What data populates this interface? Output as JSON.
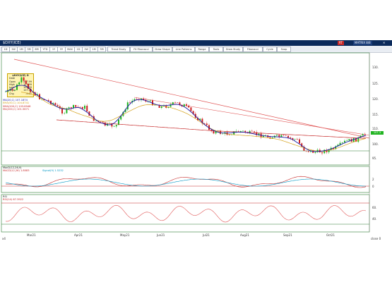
{
  "window": {
    "title": "$DXY(ICE)",
    "right_labels": [
      "RT",
      "MATRIX 8/8"
    ]
  },
  "toolbar": {
    "left_buttons": [
      "1D",
      "1W",
      "1M",
      "3M",
      "6M",
      "YTD",
      "1Y",
      "5Y",
      "MAX",
      "1D",
      "1W",
      "1M",
      "3M"
    ],
    "dropdowns": [
      "Trend Study",
      "Fit Fibonacci",
      "Draw Shape",
      "Line Patterns",
      "Range",
      "Tools",
      "Draw Study",
      "Fibonacci"
    ],
    "right_buttons": [
      "Cycle",
      "Snap"
    ]
  },
  "databox": {
    "header": "$DXY(ICE) D",
    "rows": [
      {
        "label": "Date",
        "value": ""
      },
      {
        "label": "Open",
        "value": "107.99"
      },
      {
        "label": "High",
        "value": "107.99"
      },
      {
        "label": "Low",
        "value": "106.99"
      },
      {
        "label": "Close",
        "value": "107.08"
      },
      {
        "label": "Chg",
        "value": "-0.91"
      },
      {
        "label": "%Chg",
        "value": "-0.84%"
      }
    ]
  },
  "price_pane": {
    "legends": [
      {
        "text": "MA(20,C) 107.1874",
        "color": "#1a1aa6"
      },
      {
        "text": "EMA(50,C) 104.8741",
        "color": "#d4a017"
      },
      {
        "text": "SMA(200,C) 103.8948",
        "color": "#c62828"
      },
      {
        "text": "MA(200,C) 101.5671",
        "color": "#c62828"
      }
    ],
    "y_ticks": [
      "130.",
      "125.",
      "120.",
      "115.",
      "110.",
      "107.3",
      "100.",
      "95."
    ],
    "last_price": "107.3",
    "colors": {
      "up": "#22b422",
      "down": "#cc1f1f",
      "ma_short": "#1a1aa6",
      "ma_long": "#c62828",
      "ma_mid": "#d4a017",
      "trendline": "#e05555"
    }
  },
  "macd_pane": {
    "title": "MacD(12,26,9)",
    "legend": "MACD(12,26) 1.8083",
    "legend2": "Signal(9) 1.5232",
    "y_ticks": [
      "2",
      "0",
      "-2"
    ]
  },
  "rsi_pane": {
    "title": "RSI",
    "legend": "RSI(14) 67.3922",
    "y_ticks": [
      "80.",
      "60.",
      "40.",
      "20."
    ]
  },
  "x_dates": [
    "Mar21",
    "Apr21",
    "May21",
    "Jun21",
    "Jul21",
    "Aug21",
    "Sep21",
    "Oct21"
  ],
  "status": {
    "left": "x4",
    "right": "close 0"
  }
}
